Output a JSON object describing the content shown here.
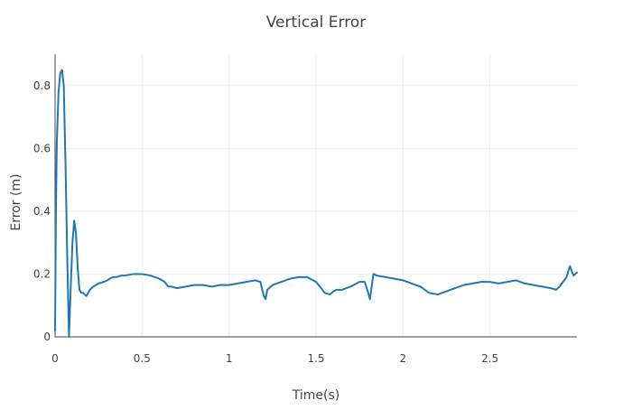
{
  "chart_data": {
    "type": "line",
    "title": "Vertical Error",
    "xlabel": "Time(s)",
    "ylabel": "Error (m)",
    "xlim": [
      0,
      3.0
    ],
    "ylim": [
      0,
      0.9
    ],
    "x_ticks": [
      0,
      0.5,
      1,
      1.5,
      2,
      2.5
    ],
    "x_tick_labels": [
      "0",
      "0.5",
      "1",
      "1.5",
      "2",
      "2.5"
    ],
    "y_ticks": [
      0,
      0.2,
      0.4,
      0.6,
      0.8
    ],
    "y_tick_labels": [
      "0",
      "0.2",
      "0.4",
      "0.6",
      "0.8"
    ],
    "grid": true,
    "legend": "none",
    "series": [
      {
        "color": "#1f77b4",
        "x": [
          0,
          0.005,
          0.01,
          0.02,
          0.03,
          0.04,
          0.05,
          0.06,
          0.07,
          0.08,
          0.09,
          0.1,
          0.11,
          0.12,
          0.13,
          0.14,
          0.15,
          0.16,
          0.17,
          0.18,
          0.19,
          0.2,
          0.22,
          0.25,
          0.28,
          0.3,
          0.33,
          0.35,
          0.38,
          0.4,
          0.45,
          0.5,
          0.55,
          0.6,
          0.63,
          0.65,
          0.67,
          0.7,
          0.75,
          0.8,
          0.85,
          0.9,
          0.95,
          1.0,
          1.05,
          1.1,
          1.15,
          1.18,
          1.2,
          1.21,
          1.22,
          1.25,
          1.3,
          1.35,
          1.4,
          1.45,
          1.5,
          1.53,
          1.55,
          1.58,
          1.6,
          1.62,
          1.65,
          1.7,
          1.75,
          1.78,
          1.8,
          1.81,
          1.82,
          1.83,
          1.85,
          1.9,
          1.95,
          2.0,
          2.05,
          2.1,
          2.15,
          2.2,
          2.25,
          2.3,
          2.35,
          2.4,
          2.45,
          2.5,
          2.55,
          2.6,
          2.65,
          2.7,
          2.75,
          2.8,
          2.85,
          2.88,
          2.9,
          2.92,
          2.94,
          2.96,
          2.98,
          3.0
        ],
        "y": [
          0.02,
          0.4,
          0.62,
          0.78,
          0.84,
          0.85,
          0.8,
          0.55,
          0.25,
          0.0,
          0.16,
          0.3,
          0.37,
          0.33,
          0.22,
          0.15,
          0.14,
          0.14,
          0.135,
          0.13,
          0.14,
          0.15,
          0.16,
          0.17,
          0.175,
          0.18,
          0.19,
          0.19,
          0.195,
          0.195,
          0.2,
          0.2,
          0.195,
          0.185,
          0.175,
          0.16,
          0.16,
          0.155,
          0.16,
          0.165,
          0.165,
          0.16,
          0.165,
          0.165,
          0.17,
          0.175,
          0.18,
          0.175,
          0.13,
          0.12,
          0.15,
          0.165,
          0.175,
          0.185,
          0.19,
          0.19,
          0.175,
          0.155,
          0.14,
          0.135,
          0.145,
          0.15,
          0.15,
          0.16,
          0.175,
          0.175,
          0.14,
          0.12,
          0.16,
          0.2,
          0.195,
          0.19,
          0.185,
          0.18,
          0.17,
          0.16,
          0.14,
          0.135,
          0.145,
          0.155,
          0.165,
          0.17,
          0.175,
          0.175,
          0.17,
          0.175,
          0.18,
          0.17,
          0.165,
          0.16,
          0.155,
          0.15,
          0.16,
          0.175,
          0.19,
          0.225,
          0.195,
          0.205
        ]
      }
    ]
  }
}
